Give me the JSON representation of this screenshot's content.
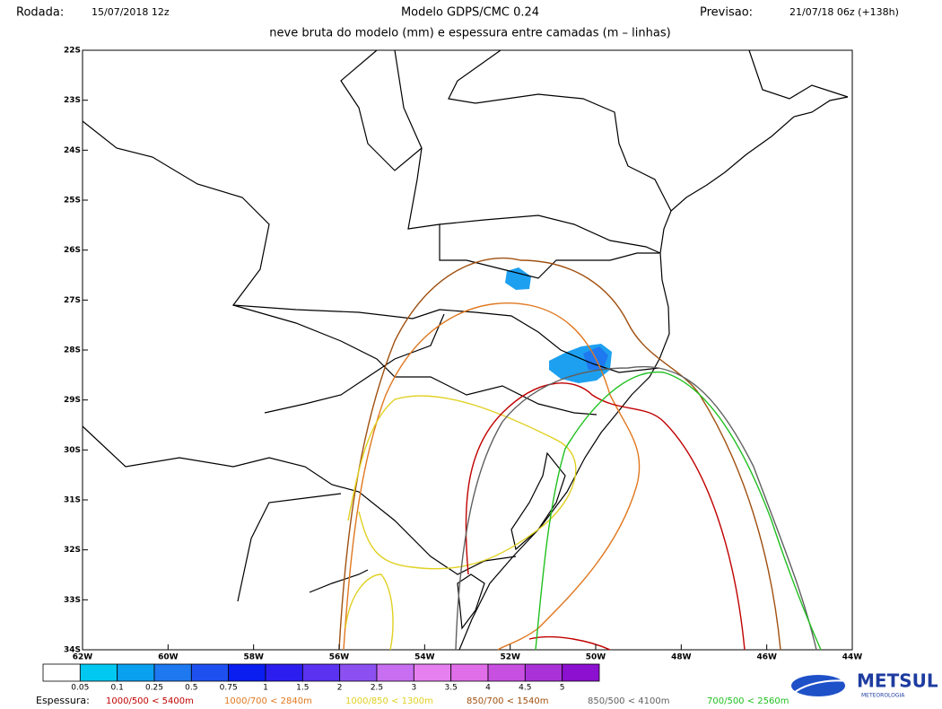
{
  "header": {
    "rodada_label": "Rodada:",
    "rodada": "15/07/2018 12z",
    "title": "Modelo GDPS/CMC 0.24",
    "previsao_label": "Previsao:",
    "previsao": "21/07/18 06z (+138h)",
    "subtitle": "neve bruta do modelo (mm) e espessura entre camadas (m – linhas)"
  },
  "map": {
    "lat_labels": [
      "22S",
      "23S",
      "24S",
      "25S",
      "26S",
      "27S",
      "28S",
      "29S",
      "30S",
      "31S",
      "32S",
      "33S",
      "34S"
    ],
    "lon_labels": [
      "62W",
      "60W",
      "58W",
      "56W",
      "54W",
      "52W",
      "50W",
      "48W",
      "46W",
      "44W"
    ]
  },
  "colorbar": {
    "colors": [
      "#ffffff",
      "#00c8f0",
      "#0aa0f0",
      "#1e78f0",
      "#1e50f0",
      "#0a1ef0",
      "#2d1ef0",
      "#5a32f0",
      "#8c50f0",
      "#c86ef0",
      "#e680f0",
      "#e06ee8",
      "#c850e0",
      "#a832d8",
      "#8c10d0"
    ],
    "labels": [
      "0.05",
      "0.1",
      "0.25",
      "0.5",
      "0.75",
      "1",
      "1.5",
      "2",
      "2.5",
      "3",
      "3.5",
      "4",
      "4.5",
      "5"
    ]
  },
  "thickness_legend": {
    "label": "Espessura:",
    "items": [
      {
        "text": "1000/500 < 5400m",
        "color": "#c00000"
      },
      {
        "text": "1000/700 < 2840m",
        "color": "#e07820"
      },
      {
        "text": "1000/850 < 1300m",
        "color": "#e0d020"
      },
      {
        "text": "850/700 < 1540m",
        "color": "#a05010"
      },
      {
        "text": "850/500 < 4100m",
        "color": "#606060"
      },
      {
        "text": "700/500 < 2560m",
        "color": "#20c020"
      }
    ]
  },
  "logo": {
    "name": "METSUL",
    "sub": "METEOROLOGIA"
  }
}
